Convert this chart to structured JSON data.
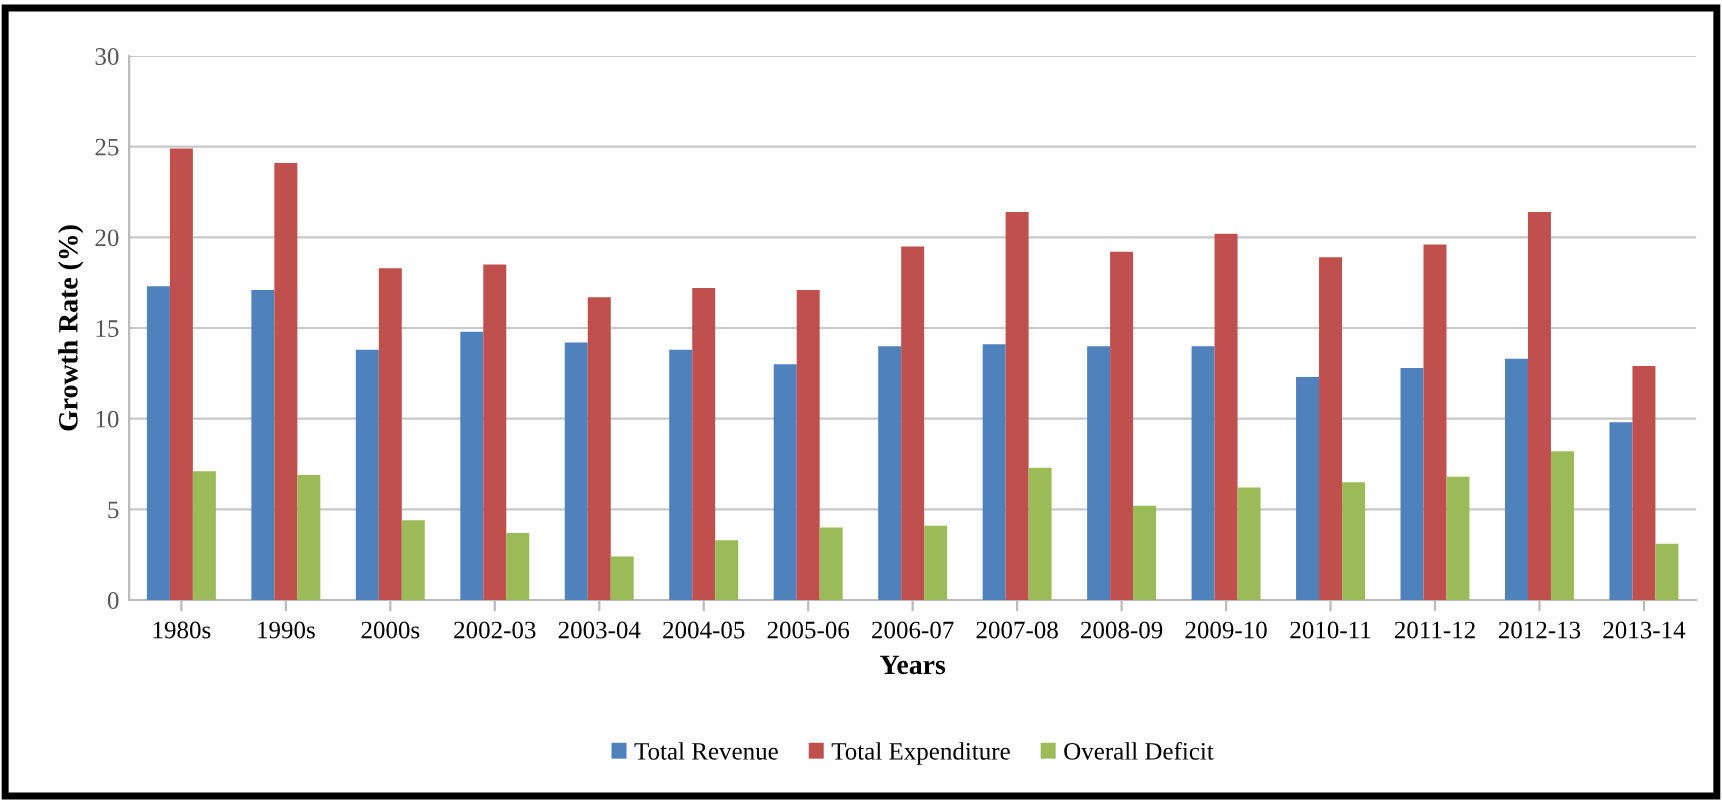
{
  "chart_data": {
    "type": "bar",
    "xlabel": "Years",
    "ylabel": "Growth Rate (%)",
    "categories": [
      "1980s",
      "1990s",
      "2000s",
      "2002-03",
      "2003-04",
      "2004-05",
      "2005-06",
      "2006-07",
      "2007-08",
      "2008-09",
      "2009-10",
      "2010-11",
      "2011-12",
      "2012-13",
      "2013-14"
    ],
    "series": [
      {
        "name": "Total Revenue",
        "color": "#4f81bd",
        "values": [
          17.3,
          17.1,
          13.8,
          14.8,
          14.2,
          13.8,
          13.0,
          14.0,
          14.1,
          14.0,
          14.0,
          12.3,
          12.8,
          13.3,
          9.8
        ]
      },
      {
        "name": "Total Expenditure",
        "color": "#c0504d",
        "values": [
          24.9,
          24.1,
          18.3,
          18.5,
          16.7,
          17.2,
          17.1,
          19.5,
          21.4,
          19.2,
          20.2,
          18.9,
          19.6,
          21.4,
          12.9
        ]
      },
      {
        "name": "Overall Deficit",
        "color": "#9bbb59",
        "values": [
          7.1,
          6.9,
          4.4,
          3.7,
          2.4,
          3.3,
          4.0,
          4.1,
          7.3,
          5.2,
          6.2,
          6.5,
          6.8,
          8.2,
          3.1
        ]
      }
    ],
    "ylim": [
      0,
      30
    ],
    "yticks": [
      0,
      5,
      10,
      15,
      20,
      25,
      30
    ],
    "grid": "y",
    "legend": "bottom"
  }
}
